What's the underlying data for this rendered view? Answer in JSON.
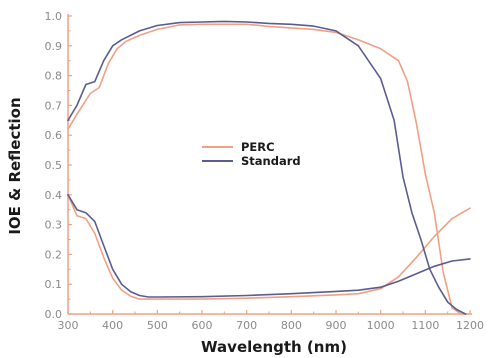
{
  "chart_data": {
    "type": "line",
    "title": "",
    "xlabel": "Wavelength (nm)",
    "ylabel": "IOE & Reflection",
    "xlim": [
      300,
      1200
    ],
    "ylim": [
      0,
      1.0
    ],
    "xticks": [
      "300",
      "400",
      "500",
      "600",
      "700",
      "800",
      "900",
      "1000",
      "1100",
      "1200"
    ],
    "yticks": [
      "0.0",
      "0.1",
      "0.2",
      "0.3",
      "0.4",
      "0.5",
      "0.6",
      "0.7",
      "0.8",
      "0.9",
      "1.0"
    ],
    "grid": false,
    "legend_position": "center",
    "colors": {
      "PERC": "#f0a085",
      "Standard": "#5a5d8e",
      "axis": "#f0a085"
    },
    "series": [
      {
        "name": "PERC",
        "curves": [
          {
            "x": [
              300,
              320,
              350,
              370,
              390,
              410,
              430,
              460,
              500,
              550,
              600,
              650,
              700,
              750,
              800,
              850,
              900,
              950,
              1000,
              1040,
              1060,
              1080,
              1100,
              1120,
              1140,
              1160,
              1180,
              1195
            ],
            "y": [
              0.62,
              0.67,
              0.74,
              0.76,
              0.84,
              0.89,
              0.915,
              0.935,
              0.955,
              0.97,
              0.972,
              0.972,
              0.972,
              0.965,
              0.96,
              0.955,
              0.945,
              0.92,
              0.89,
              0.85,
              0.78,
              0.64,
              0.47,
              0.34,
              0.14,
              0.02,
              0.0,
              0.0
            ]
          },
          {
            "x": [
              300,
              320,
              340,
              360,
              380,
              400,
              420,
              440,
              460,
              500,
              600,
              700,
              800,
              900,
              950,
              1000,
              1040,
              1080,
              1120,
              1160,
              1200
            ],
            "y": [
              0.4,
              0.33,
              0.32,
              0.27,
              0.19,
              0.12,
              0.08,
              0.06,
              0.05,
              0.05,
              0.05,
              0.053,
              0.058,
              0.064,
              0.068,
              0.085,
              0.125,
              0.19,
              0.26,
              0.32,
              0.355
            ]
          }
        ]
      },
      {
        "name": "Standard",
        "curves": [
          {
            "x": [
              300,
              320,
              340,
              360,
              380,
              400,
              420,
              440,
              460,
              500,
              550,
              600,
              650,
              700,
              750,
              800,
              850,
              900,
              950,
              1000,
              1030,
              1050,
              1070,
              1090,
              1110,
              1130,
              1150,
              1170,
              1190
            ],
            "y": [
              0.65,
              0.7,
              0.77,
              0.78,
              0.85,
              0.9,
              0.92,
              0.935,
              0.95,
              0.968,
              0.978,
              0.98,
              0.982,
              0.98,
              0.975,
              0.972,
              0.966,
              0.95,
              0.9,
              0.79,
              0.65,
              0.46,
              0.34,
              0.25,
              0.15,
              0.09,
              0.04,
              0.015,
              0.0
            ]
          },
          {
            "x": [
              300,
              320,
              340,
              360,
              380,
              400,
              420,
              440,
              460,
              480,
              500,
              600,
              700,
              800,
              900,
              950,
              1000,
              1040,
              1080,
              1120,
              1160,
              1200
            ],
            "y": [
              0.4,
              0.35,
              0.34,
              0.31,
              0.23,
              0.15,
              0.1,
              0.075,
              0.062,
              0.057,
              0.057,
              0.058,
              0.062,
              0.068,
              0.076,
              0.08,
              0.09,
              0.11,
              0.135,
              0.16,
              0.178,
              0.185
            ]
          }
        ]
      }
    ]
  }
}
